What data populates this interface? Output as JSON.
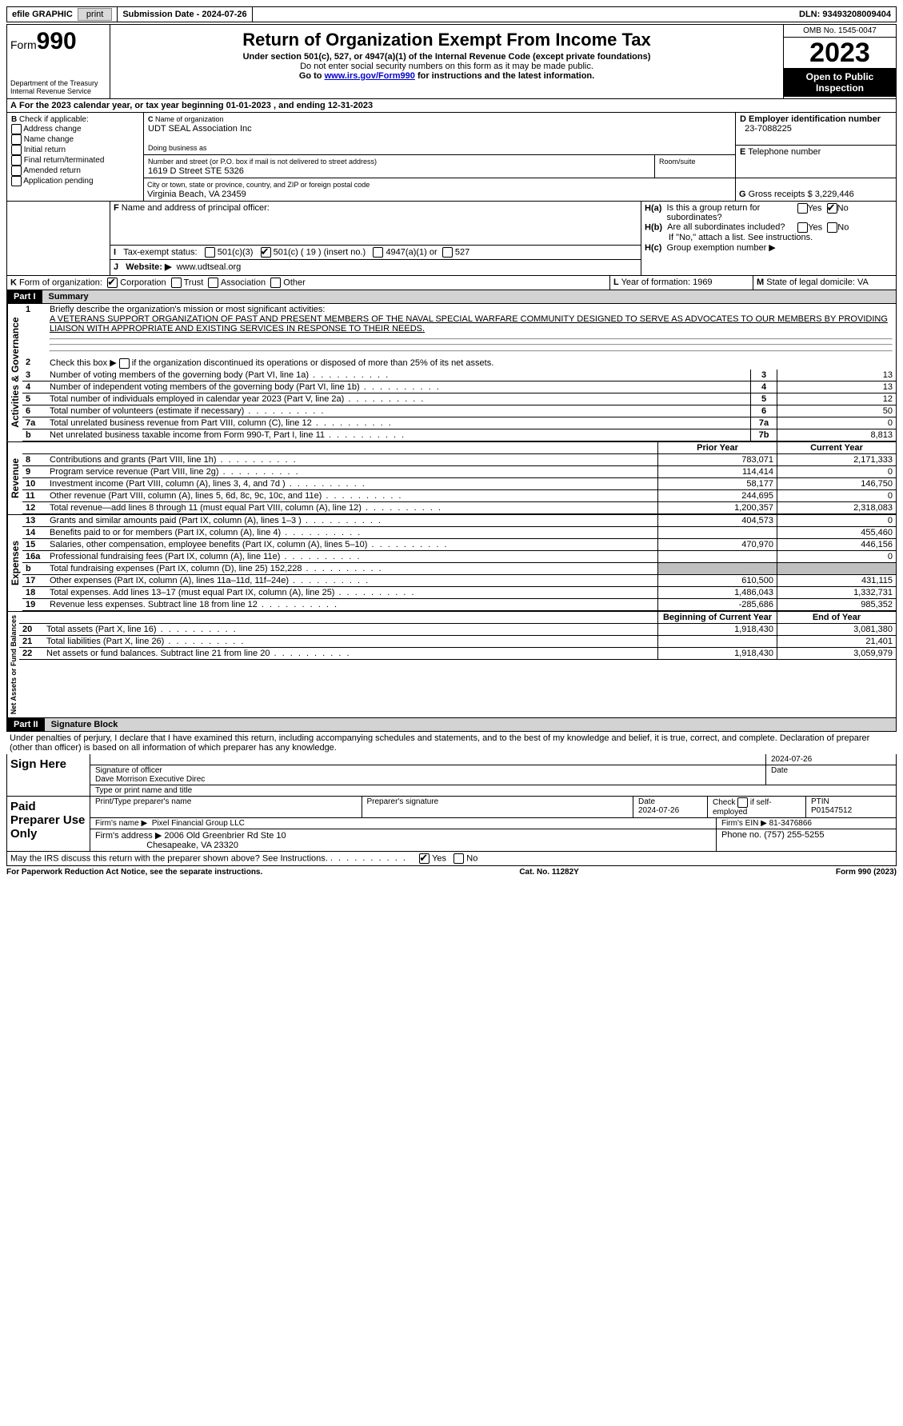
{
  "topbar": {
    "efile": "efile GRAPHIC",
    "print": "print",
    "submission_label": "Submission Date - ",
    "submission_date": "2024-07-26",
    "dln_label": "DLN: ",
    "dln": "93493208009404"
  },
  "header": {
    "form_label": "Form",
    "form_no": "990",
    "dept1": "Department of the Treasury",
    "dept2": "Internal Revenue Service",
    "title": "Return of Organization Exempt From Income Tax",
    "sub1": "Under section 501(c), 527, or 4947(a)(1) of the Internal Revenue Code (except private foundations)",
    "sub2": "Do not enter social security numbers on this form as it may be made public.",
    "sub3_pre": "Go to ",
    "sub3_link": "www.irs.gov/Form990",
    "sub3_post": " for instructions and the latest information.",
    "omb": "OMB No. 1545-0047",
    "year": "2023",
    "inspection": "Open to Public Inspection"
  },
  "lineA": {
    "text_pre": "For the 2023 calendar year, or tax year beginning ",
    "begin": "01-01-2023",
    "text_mid": " , and ending ",
    "end": "12-31-2023"
  },
  "B": {
    "label": "Check if applicable:",
    "opts": [
      "Address change",
      "Name change",
      "Initial return",
      "Final return/terminated",
      "Amended return",
      "Application pending"
    ]
  },
  "C": {
    "name_label": "Name of organization",
    "name": "UDT SEAL Association Inc",
    "dba_label": "Doing business as",
    "addr_label": "Number and street (or P.O. box if mail is not delivered to street address)",
    "room_label": "Room/suite",
    "addr": "1619 D Street STE 5326",
    "city_label": "City or town, state or province, country, and ZIP or foreign postal code",
    "city": "Virginia Beach, VA  23459"
  },
  "D": {
    "label": "Employer identification number",
    "val": "23-7088225"
  },
  "E": {
    "label": "Telephone number",
    "val": ""
  },
  "G": {
    "label": "Gross receipts $",
    "val": "3,229,446"
  },
  "F": {
    "label": "Name and address of principal officer:"
  },
  "H": {
    "a": "Is this a group return for subordinates?",
    "b": "Are all subordinates included?",
    "b_note": "If \"No,\" attach a list. See instructions.",
    "c": "Group exemption number ▶",
    "yes": "Yes",
    "no": "No",
    "ha_no_checked": true
  },
  "I": {
    "label": "Tax-exempt status:",
    "o1": "501(c)(3)",
    "o2": "501(c) ( 19 ) (insert no.)",
    "o3": "4947(a)(1) or",
    "o4": "527",
    "o2_checked": true
  },
  "J": {
    "label": "Website: ▶",
    "val": "www.udtseal.org"
  },
  "K": {
    "label": "Form of organization:",
    "opts": [
      "Corporation",
      "Trust",
      "Association",
      "Other"
    ],
    "corp_checked": true
  },
  "L": {
    "label": "Year of formation:",
    "val": "1969"
  },
  "M": {
    "label": "State of legal domicile:",
    "val": "VA"
  },
  "part1": {
    "tag": "Part I",
    "title": "Summary"
  },
  "mission_label": "Briefly describe the organization's mission or most significant activities:",
  "mission": "A VETERANS SUPPORT ORGANIZATION OF PAST AND PRESENT MEMBERS OF THE NAVAL SPECIAL WARFARE COMMUNITY DESIGNED TO SERVE AS ADVOCATES TO OUR MEMBERS BY PROVIDING LIAISON WITH APPROPRIATE AND EXISTING SERVICES IN RESPONSE TO THEIR NEEDS.",
  "line2": "Check this box ▶    if the organization discontinued its operations or disposed of more than 25% of its net assets.",
  "gov_rows": [
    {
      "n": "3",
      "t": "Number of voting members of the governing body (Part VI, line 1a)",
      "box": "3",
      "v": "13"
    },
    {
      "n": "4",
      "t": "Number of independent voting members of the governing body (Part VI, line 1b)",
      "box": "4",
      "v": "13"
    },
    {
      "n": "5",
      "t": "Total number of individuals employed in calendar year 2023 (Part V, line 2a)",
      "box": "5",
      "v": "12"
    },
    {
      "n": "6",
      "t": "Total number of volunteers (estimate if necessary)",
      "box": "6",
      "v": "50"
    },
    {
      "n": "7a",
      "t": "Total unrelated business revenue from Part VIII, column (C), line 12",
      "box": "7a",
      "v": "0"
    },
    {
      "n": "b",
      "t": "Net unrelated business taxable income from Form 990-T, Part I, line 11",
      "box": "7b",
      "v": "8,813"
    }
  ],
  "col_hdr": {
    "prior": "Prior Year",
    "curr": "Current Year",
    "begin": "Beginning of Current Year",
    "end": "End of Year"
  },
  "rev_rows": [
    {
      "n": "8",
      "t": "Contributions and grants (Part VIII, line 1h)",
      "p": "783,071",
      "c": "2,171,333"
    },
    {
      "n": "9",
      "t": "Program service revenue (Part VIII, line 2g)",
      "p": "114,414",
      "c": "0"
    },
    {
      "n": "10",
      "t": "Investment income (Part VIII, column (A), lines 3, 4, and 7d )",
      "p": "58,177",
      "c": "146,750"
    },
    {
      "n": "11",
      "t": "Other revenue (Part VIII, column (A), lines 5, 6d, 8c, 9c, 10c, and 11e)",
      "p": "244,695",
      "c": "0"
    },
    {
      "n": "12",
      "t": "Total revenue—add lines 8 through 11 (must equal Part VIII, column (A), line 12)",
      "p": "1,200,357",
      "c": "2,318,083"
    }
  ],
  "exp_rows": [
    {
      "n": "13",
      "t": "Grants and similar amounts paid (Part IX, column (A), lines 1–3 )",
      "p": "404,573",
      "c": "0"
    },
    {
      "n": "14",
      "t": "Benefits paid to or for members (Part IX, column (A), line 4)",
      "p": "",
      "c": "455,460"
    },
    {
      "n": "15",
      "t": "Salaries, other compensation, employee benefits (Part IX, column (A), lines 5–10)",
      "p": "470,970",
      "c": "446,156"
    },
    {
      "n": "16a",
      "t": "Professional fundraising fees (Part IX, column (A), line 11e)",
      "p": "",
      "c": "0"
    },
    {
      "n": "b",
      "t": "Total fundraising expenses (Part IX, column (D), line 25) 152,228",
      "p": "SHADE",
      "c": "SHADE"
    },
    {
      "n": "17",
      "t": "Other expenses (Part IX, column (A), lines 11a–11d, 11f–24e)",
      "p": "610,500",
      "c": "431,115"
    },
    {
      "n": "18",
      "t": "Total expenses. Add lines 13–17 (must equal Part IX, column (A), line 25)",
      "p": "1,486,043",
      "c": "1,332,731"
    },
    {
      "n": "19",
      "t": "Revenue less expenses. Subtract line 18 from line 12",
      "p": "-285,686",
      "c": "985,352"
    }
  ],
  "net_rows": [
    {
      "n": "20",
      "t": "Total assets (Part X, line 16)",
      "p": "1,918,430",
      "c": "3,081,380"
    },
    {
      "n": "21",
      "t": "Total liabilities (Part X, line 26)",
      "p": "",
      "c": "21,401"
    },
    {
      "n": "22",
      "t": "Net assets or fund balances. Subtract line 21 from line 20",
      "p": "1,918,430",
      "c": "3,059,979"
    }
  ],
  "part2": {
    "tag": "Part II",
    "title": "Signature Block"
  },
  "perjury": "Under penalties of perjury, I declare that I have examined this return, including accompanying schedules and statements, and to the best of my knowledge and belief, it is true, correct, and complete. Declaration of preparer (other than officer) is based on all information of which preparer has any knowledge.",
  "sign": {
    "here": "Sign Here",
    "sig_officer": "Signature of officer",
    "officer_name": "Dave Morrison  Executive Direc",
    "type_name": "Type or print name and title",
    "date": "2024-07-26",
    "date_label": "Date"
  },
  "paid": {
    "label": "Paid Preparer Use Only",
    "print_name_label": "Print/Type preparer's name",
    "sig_label": "Preparer's signature",
    "date_label": "Date",
    "date": "2024-07-26",
    "check_label": "Check         if self-employed",
    "ptin_label": "PTIN",
    "ptin": "P01547512",
    "firm_name_label": "Firm's name    ▶",
    "firm_name": "Pixel Financial Group LLC",
    "firm_ein_label": "Firm's EIN ▶",
    "firm_ein": "81-3476866",
    "firm_addr_label": "Firm's address ▶",
    "firm_addr1": "2006 Old Greenbrier Rd Ste 10",
    "firm_addr2": "Chesapeake, VA  23320",
    "phone_label": "Phone no.",
    "phone": "(757) 255-5255"
  },
  "discuss": {
    "text": "May the IRS discuss this return with the preparer shown above? See Instructions.",
    "yes": "Yes",
    "no": "No",
    "yes_checked": true
  },
  "footer": {
    "left": "For Paperwork Reduction Act Notice, see the separate instructions.",
    "mid": "Cat. No. 11282Y",
    "right": "Form 990 (2023)"
  },
  "side_labels": {
    "gov": "Activities & Governance",
    "rev": "Revenue",
    "exp": "Expenses",
    "net": "Net Assets or Fund Balances"
  }
}
